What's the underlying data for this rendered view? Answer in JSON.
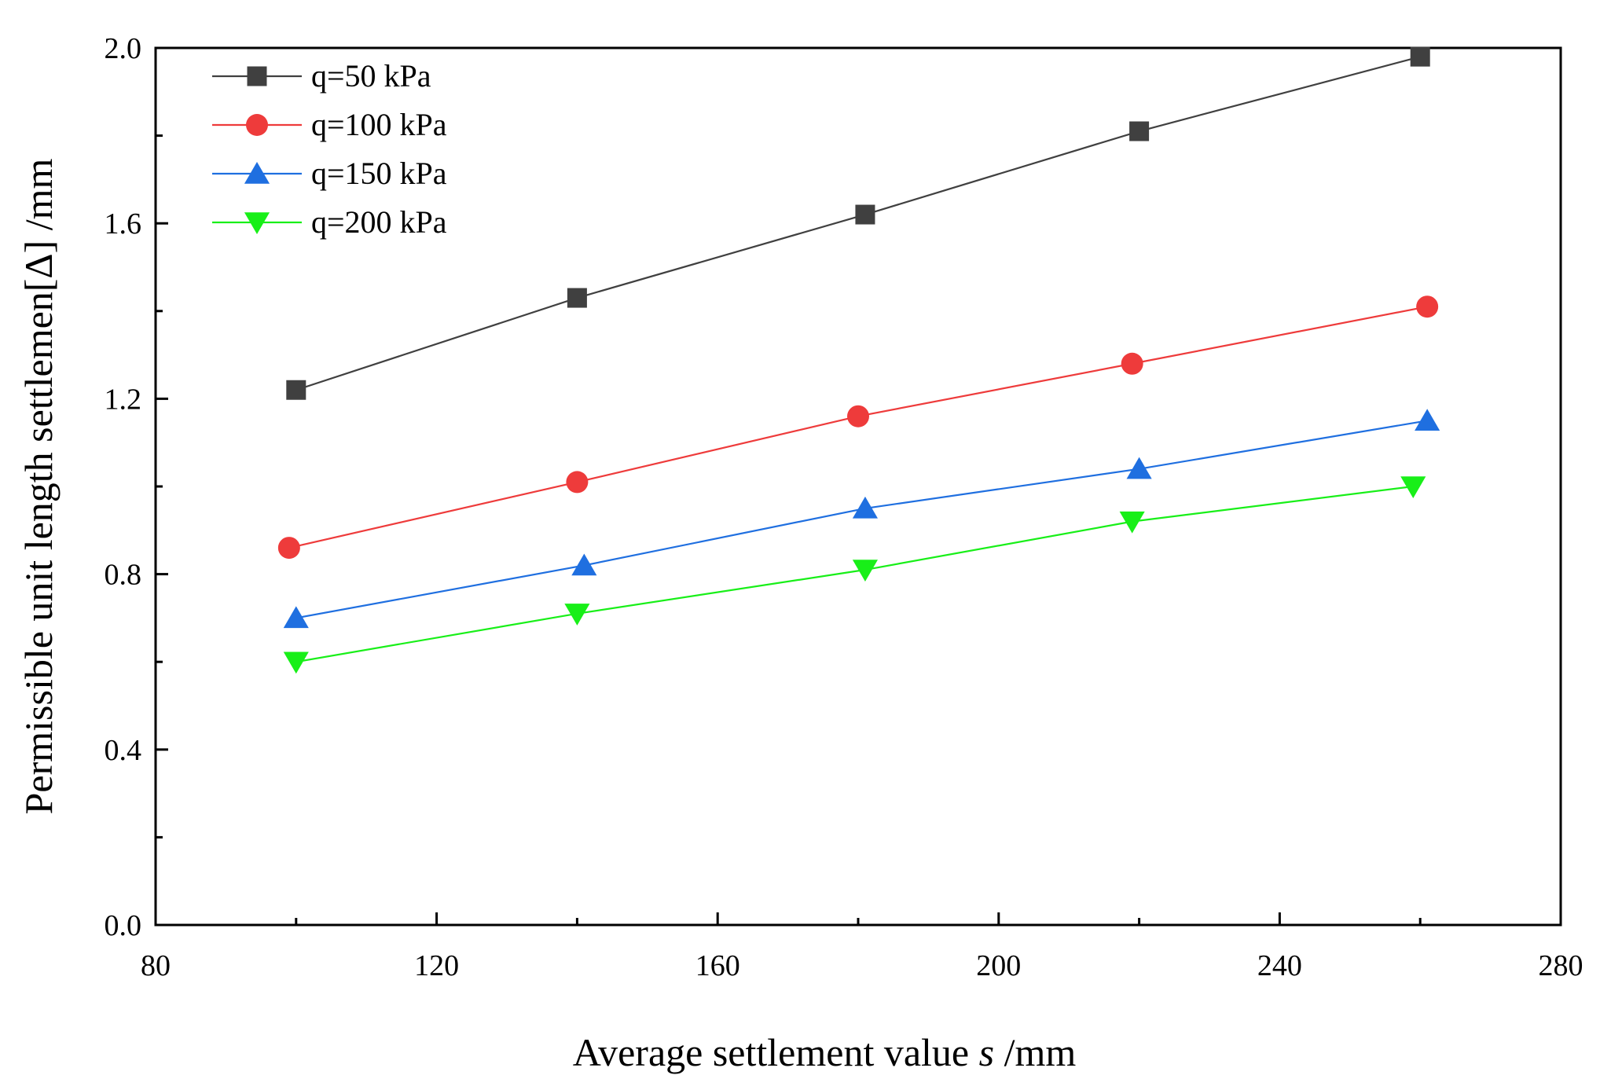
{
  "chart_data": {
    "type": "line",
    "title": "",
    "xlabel_prefix": "Average settlement value ",
    "xlabel_var": "s",
    "xlabel_suffix": " /mm",
    "ylabel": "Permissible unit length settlemen[Δ] /mm",
    "xlim": [
      80,
      280
    ],
    "ylim": [
      0.0,
      2.0
    ],
    "xticks": [
      "80",
      "120",
      "160",
      "200",
      "240",
      "280"
    ],
    "yticks": [
      "0.0",
      "0.4",
      "0.8",
      "1.2",
      "1.6",
      "2.0"
    ],
    "legend_position": "top-left",
    "series": [
      {
        "name": "q=50 kPa",
        "color": "#404040",
        "marker": "square",
        "x": [
          100,
          140,
          181,
          220,
          260
        ],
        "y": [
          1.22,
          1.43,
          1.62,
          1.81,
          1.98
        ]
      },
      {
        "name": "q=100 kPa",
        "color": "#ee3b3b",
        "marker": "circle",
        "x": [
          99,
          140,
          180,
          219,
          261
        ],
        "y": [
          0.86,
          1.01,
          1.16,
          1.28,
          1.41
        ]
      },
      {
        "name": "q=150 kPa",
        "color": "#1f6fe0",
        "marker": "triangle-up",
        "x": [
          100,
          141,
          181,
          220,
          261
        ],
        "y": [
          0.7,
          0.82,
          0.95,
          1.04,
          1.15
        ]
      },
      {
        "name": "q=200 kPa",
        "color": "#18ef18",
        "marker": "triangle-down",
        "x": [
          100,
          140,
          181,
          219,
          259
        ],
        "y": [
          0.6,
          0.71,
          0.81,
          0.92,
          1.0
        ]
      }
    ]
  }
}
